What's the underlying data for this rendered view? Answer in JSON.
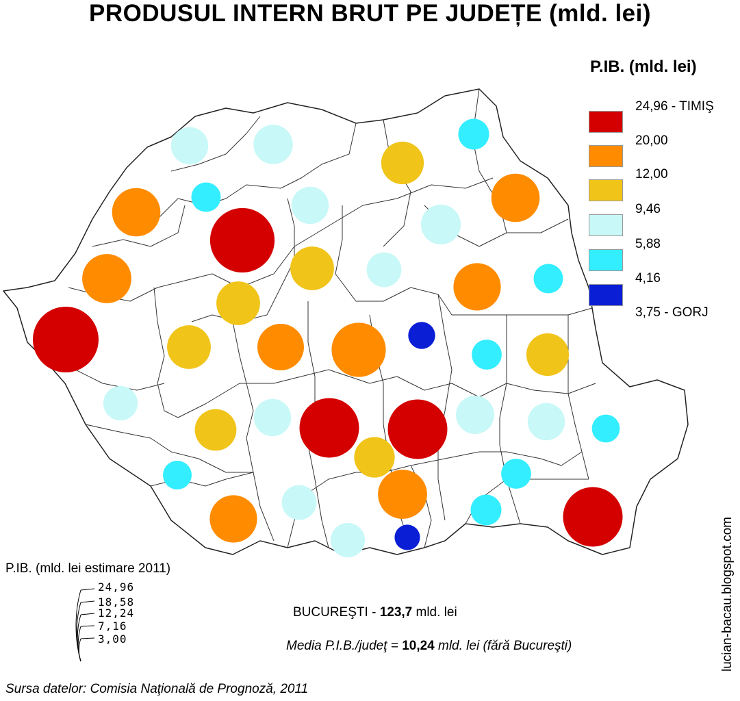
{
  "title": "PRODUSUL INTERN BRUT PE JUDEȚE (mld. lei)",
  "legend": {
    "title": "P.IB. (mld. lei)",
    "classes": [
      {
        "color": "#d40000",
        "label": "24,96 - TIMIŞ"
      },
      {
        "color": "#ff8c00",
        "label": "20,00"
      },
      {
        "color": "#f0c419",
        "label": "12,00"
      },
      {
        "color": "#c8f8f8",
        "label": "9,46"
      },
      {
        "color": "#33eeff",
        "label": "5,88"
      },
      {
        "color": "#0a1ed6",
        "label": "4,16"
      },
      {
        "label": "3,75 - GORJ"
      }
    ]
  },
  "size_legend": {
    "title": "P.IB. (mld. lei estimare 2011)",
    "values": [
      "24,96",
      "18,58",
      "12,24",
      "7,16",
      "3,00"
    ]
  },
  "bucuresti": {
    "prefix": "BUCUREŞTI - ",
    "value": "123,7",
    "unit": " mld. lei"
  },
  "media": {
    "prefix": "Media P.I.B./judeţ = ",
    "value": "10,24",
    "suffix": " mld. lei (fără Bucureşti)"
  },
  "source": "Sursa datelor: Comisia Naţională de Prognoză, 2011",
  "watermark": "lucian-bacau.blogspot.com",
  "symbols": [
    {
      "cls": 4,
      "gdp": 8.0
    },
    {
      "cls": 4,
      "gdp": 9.0
    },
    {
      "cls": 3,
      "gdp": 10.5
    },
    {
      "cls": 5,
      "gdp": 5.5
    },
    {
      "cls": 2,
      "gdp": 13.5
    },
    {
      "cls": 4,
      "gdp": 8.0
    },
    {
      "cls": 1,
      "gdp": 24.0
    },
    {
      "cls": 4,
      "gdp": 9.2
    },
    {
      "cls": 2,
      "gdp": 13.5
    },
    {
      "cls": 5,
      "gdp": 5.0
    },
    {
      "cls": 2,
      "gdp": 14.0
    },
    {
      "cls": 3,
      "gdp": 11.0
    },
    {
      "cls": 4,
      "gdp": 7.0
    },
    {
      "cls": 3,
      "gdp": 11.0
    },
    {
      "cls": 2,
      "gdp": 13.0
    },
    {
      "cls": 5,
      "gdp": 5.0
    },
    {
      "cls": 1,
      "gdp": 24.96
    },
    {
      "cls": 3,
      "gdp": 11.0
    },
    {
      "cls": 2,
      "gdp": 12.5
    },
    {
      "cls": 2,
      "gdp": 17.0
    },
    {
      "cls": 6,
      "gdp": 4.2
    },
    {
      "cls": 5,
      "gdp": 5.2
    },
    {
      "cls": 3,
      "gdp": 10.5
    },
    {
      "cls": 4,
      "gdp": 6.8
    },
    {
      "cls": 3,
      "gdp": 10.0
    },
    {
      "cls": 4,
      "gdp": 8.0
    },
    {
      "cls": 1,
      "gdp": 20.5
    },
    {
      "cls": 1,
      "gdp": 20.5
    },
    {
      "cls": 4,
      "gdp": 8.5
    },
    {
      "cls": 4,
      "gdp": 8.0
    },
    {
      "cls": 5,
      "gdp": 4.5
    },
    {
      "cls": 5,
      "gdp": 4.8
    },
    {
      "cls": 3,
      "gdp": 9.5
    },
    {
      "cls": 2,
      "gdp": 13.0
    },
    {
      "cls": 5,
      "gdp": 5.2
    },
    {
      "cls": 2,
      "gdp": 14.0
    },
    {
      "cls": 4,
      "gdp": 7.0
    },
    {
      "cls": 5,
      "gdp": 5.5
    },
    {
      "cls": 1,
      "gdp": 20.5
    },
    {
      "cls": 4,
      "gdp": 6.8
    },
    {
      "cls": 6,
      "gdp": 3.75
    }
  ]
}
